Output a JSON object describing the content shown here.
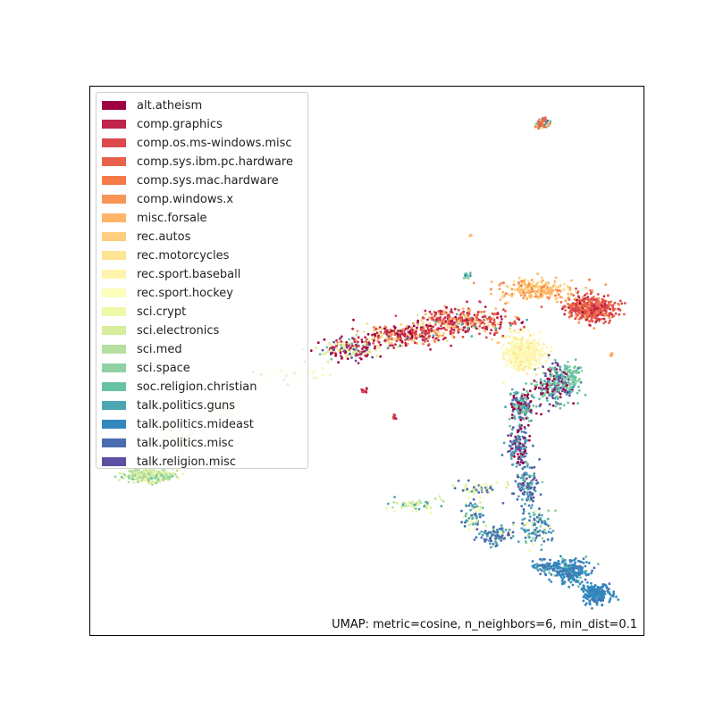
{
  "chart_data": {
    "type": "scatter",
    "title": "",
    "xlabel": "",
    "ylabel": "",
    "axes_ticks": "none",
    "grid": false,
    "legend_placement": "top-left",
    "annotation": "UMAP: metric=cosine, n_neighbors=6, min_dist=0.1",
    "series": [
      {
        "name": "alt.atheism",
        "color": "#9e0142"
      },
      {
        "name": "comp.graphics",
        "color": "#c0234b"
      },
      {
        "name": "comp.os.ms-windows.misc",
        "color": "#dc4a4c"
      },
      {
        "name": "comp.sys.ibm.pc.hardware",
        "color": "#e9614a"
      },
      {
        "name": "comp.sys.mac.hardware",
        "color": "#f57a48"
      },
      {
        "name": "comp.windows.x",
        "color": "#f99556"
      },
      {
        "name": "misc.forsale",
        "color": "#fdb567"
      },
      {
        "name": "rec.autos",
        "color": "#fecd7d"
      },
      {
        "name": "rec.motorcycles",
        "color": "#fee493"
      },
      {
        "name": "rec.sport.baseball",
        "color": "#fff4ac"
      },
      {
        "name": "rec.sport.hockey",
        "color": "#fbfdb8"
      },
      {
        "name": "sci.crypt",
        "color": "#eff8a6"
      },
      {
        "name": "sci.electronics",
        "color": "#d7ee9b"
      },
      {
        "name": "sci.med",
        "color": "#b5e0a0"
      },
      {
        "name": "sci.space",
        "color": "#8ed2a4"
      },
      {
        "name": "soc.religion.christian",
        "color": "#66c2a5"
      },
      {
        "name": "talk.politics.guns",
        "color": "#4ba6b1"
      },
      {
        "name": "talk.politics.mideast",
        "color": "#3288bd"
      },
      {
        "name": "talk.politics.misc",
        "color": "#4a6db1"
      },
      {
        "name": "talk.religion.misc",
        "color": "#5e4fa2"
      }
    ]
  }
}
